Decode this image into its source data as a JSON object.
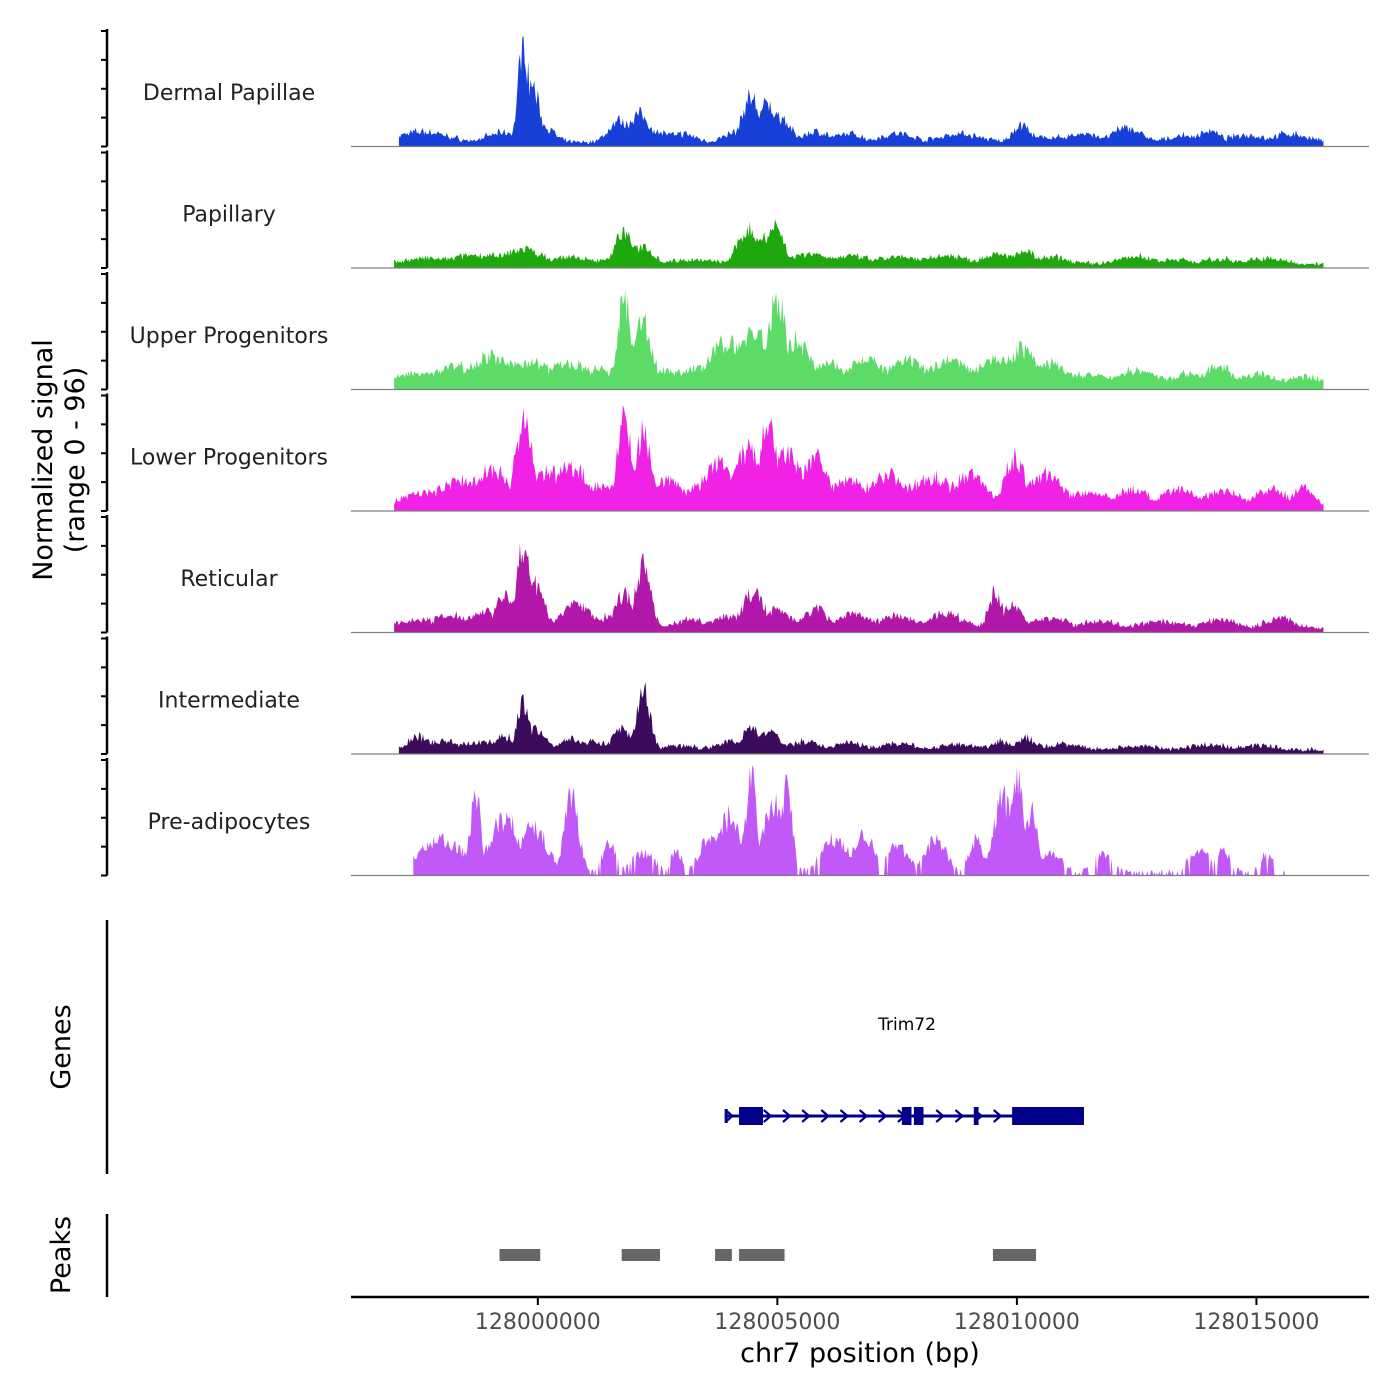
{
  "chart_data": {
    "type": "area",
    "title": "",
    "ylabel_line1": "Normalized signal",
    "ylabel_line2": "(range 0 - 96)",
    "y_range": [
      0,
      96
    ],
    "xlabel": "chr7 position (bp)",
    "x_range": [
      127996100,
      128017350
    ],
    "x_ticks": [
      128000000,
      128005000,
      128010000,
      128015000
    ],
    "x_tick_labels": [
      "128000000",
      "128005000",
      "128010000",
      "128015000"
    ],
    "tracks": [
      {
        "name": "Dermal Papillae",
        "color": "#1740D9",
        "span": [
          127997100,
          128016400
        ],
        "peaks": [
          [
            127997600,
            10,
            700
          ],
          [
            127998000,
            5,
            500
          ],
          [
            127999300,
            9,
            500
          ],
          [
            127999700,
            96,
            150
          ],
          [
            127999850,
            55,
            250
          ],
          [
            128000100,
            16,
            300
          ],
          [
            128001700,
            20,
            300
          ],
          [
            128002100,
            26,
            350
          ],
          [
            128002500,
            10,
            400
          ],
          [
            128003000,
            8,
            400
          ],
          [
            128004200,
            10,
            400
          ],
          [
            128004450,
            42,
            250
          ],
          [
            128004800,
            35,
            300
          ],
          [
            128005050,
            24,
            300
          ],
          [
            128005800,
            10,
            400
          ],
          [
            128006500,
            8,
            400
          ],
          [
            128007500,
            8,
            500
          ],
          [
            128008800,
            8,
            600
          ],
          [
            128010100,
            16,
            250
          ],
          [
            128010700,
            5,
            500
          ],
          [
            128011400,
            8,
            500
          ],
          [
            128012300,
            14,
            400
          ],
          [
            128013500,
            6,
            500
          ],
          [
            128014000,
            11,
            300
          ],
          [
            128014800,
            7,
            500
          ],
          [
            128015700,
            8,
            500
          ]
        ]
      },
      {
        "name": "Papillary",
        "color": "#1FA80E",
        "span": [
          127997000,
          128016400
        ],
        "peaks": [
          [
            127997700,
            5,
            700
          ],
          [
            127998800,
            8,
            900
          ],
          [
            127999700,
            14,
            500
          ],
          [
            128000600,
            6,
            600
          ],
          [
            128001600,
            5,
            500
          ],
          [
            128001800,
            30,
            250
          ],
          [
            128002200,
            16,
            300
          ],
          [
            128003200,
            4,
            600
          ],
          [
            128004400,
            32,
            300
          ],
          [
            128004750,
            28,
            250
          ],
          [
            128004950,
            36,
            250
          ],
          [
            128005700,
            10,
            500
          ],
          [
            128006500,
            7,
            600
          ],
          [
            128007500,
            6,
            600
          ],
          [
            128008500,
            8,
            600
          ],
          [
            128009600,
            10,
            400
          ],
          [
            128010150,
            12,
            300
          ],
          [
            128010700,
            6,
            500
          ],
          [
            128012500,
            7,
            500
          ],
          [
            128013300,
            4,
            500
          ],
          [
            128014300,
            4,
            600
          ],
          [
            128015200,
            5,
            500
          ]
        ]
      },
      {
        "name": "Upper Progenitors",
        "color": "#5CDC66",
        "span": [
          127997000,
          128016400
        ],
        "peaks": [
          [
            127997500,
            12,
            600
          ],
          [
            127998300,
            18,
            700
          ],
          [
            127999000,
            26,
            700
          ],
          [
            127999800,
            22,
            700
          ],
          [
            128000600,
            20,
            700
          ],
          [
            128001300,
            15,
            400
          ],
          [
            128001800,
            82,
            180
          ],
          [
            128002200,
            60,
            250
          ],
          [
            128002700,
            14,
            500
          ],
          [
            128003300,
            16,
            500
          ],
          [
            128004000,
            40,
            600
          ],
          [
            128004500,
            52,
            400
          ],
          [
            128005000,
            82,
            250
          ],
          [
            128005400,
            42,
            400
          ],
          [
            128006000,
            20,
            600
          ],
          [
            128006800,
            24,
            600
          ],
          [
            128007700,
            22,
            600
          ],
          [
            128008600,
            24,
            600
          ],
          [
            128009500,
            26,
            500
          ],
          [
            128010100,
            34,
            400
          ],
          [
            128010700,
            20,
            500
          ],
          [
            128011500,
            10,
            600
          ],
          [
            128012500,
            14,
            600
          ],
          [
            128013500,
            10,
            500
          ],
          [
            128014200,
            18,
            400
          ],
          [
            128015000,
            10,
            600
          ],
          [
            128016000,
            8,
            500
          ]
        ]
      },
      {
        "name": "Lower Progenitors",
        "color": "#EF22E6",
        "span": [
          127997000,
          128016400
        ],
        "peaks": [
          [
            127997600,
            14,
            600
          ],
          [
            127998400,
            24,
            700
          ],
          [
            127999000,
            34,
            600
          ],
          [
            127999700,
            80,
            250
          ],
          [
            128000200,
            34,
            400
          ],
          [
            128000700,
            38,
            500
          ],
          [
            128001300,
            20,
            400
          ],
          [
            128001800,
            84,
            200
          ],
          [
            128002200,
            68,
            250
          ],
          [
            128002700,
            25,
            500
          ],
          [
            128003300,
            18,
            400
          ],
          [
            128003800,
            40,
            500
          ],
          [
            128004400,
            52,
            400
          ],
          [
            128004800,
            70,
            300
          ],
          [
            128005200,
            50,
            400
          ],
          [
            128005800,
            48,
            350
          ],
          [
            128006500,
            24,
            600
          ],
          [
            128007300,
            30,
            600
          ],
          [
            128008200,
            28,
            600
          ],
          [
            128009000,
            30,
            500
          ],
          [
            128009950,
            45,
            300
          ],
          [
            128010600,
            30,
            500
          ],
          [
            128011500,
            14,
            600
          ],
          [
            128012400,
            16,
            500
          ],
          [
            128013400,
            16,
            500
          ],
          [
            128014300,
            16,
            500
          ],
          [
            128015300,
            16,
            500
          ],
          [
            128016000,
            18,
            300
          ]
        ]
      },
      {
        "name": "Reticular",
        "color": "#B117A8",
        "span": [
          127997000,
          128016400
        ],
        "peaks": [
          [
            127997500,
            8,
            600
          ],
          [
            127998200,
            12,
            600
          ],
          [
            127998900,
            16,
            500
          ],
          [
            127999300,
            30,
            300
          ],
          [
            127999700,
            80,
            180
          ],
          [
            127999900,
            42,
            300
          ],
          [
            128000800,
            24,
            400
          ],
          [
            128001500,
            12,
            300
          ],
          [
            128001800,
            32,
            250
          ],
          [
            128002200,
            60,
            220
          ],
          [
            128003200,
            8,
            500
          ],
          [
            128004000,
            12,
            500
          ],
          [
            128004500,
            34,
            300
          ],
          [
            128005000,
            18,
            400
          ],
          [
            128005800,
            18,
            350
          ],
          [
            128006600,
            14,
            500
          ],
          [
            128007500,
            12,
            500
          ],
          [
            128008500,
            14,
            500
          ],
          [
            128009550,
            34,
            200
          ],
          [
            128009900,
            20,
            300
          ],
          [
            128010700,
            10,
            500
          ],
          [
            128011700,
            7,
            500
          ],
          [
            128013000,
            6,
            600
          ],
          [
            128014200,
            8,
            500
          ],
          [
            128015500,
            10,
            400
          ]
        ]
      },
      {
        "name": "Intermediate",
        "color": "#3C0B5C",
        "span": [
          127997100,
          128016400
        ],
        "peaks": [
          [
            127997500,
            12,
            300
          ],
          [
            127998000,
            8,
            500
          ],
          [
            127998800,
            8,
            500
          ],
          [
            127999300,
            12,
            300
          ],
          [
            127999700,
            46,
            180
          ],
          [
            127999950,
            20,
            300
          ],
          [
            128000700,
            10,
            400
          ],
          [
            128001200,
            8,
            300
          ],
          [
            128001750,
            20,
            250
          ],
          [
            128002200,
            56,
            200
          ],
          [
            128003000,
            4,
            500
          ],
          [
            128004000,
            8,
            400
          ],
          [
            128004450,
            22,
            250
          ],
          [
            128004800,
            18,
            300
          ],
          [
            128005600,
            8,
            400
          ],
          [
            128006500,
            6,
            500
          ],
          [
            128007500,
            6,
            500
          ],
          [
            128008800,
            5,
            500
          ],
          [
            128009700,
            8,
            300
          ],
          [
            128010200,
            10,
            300
          ],
          [
            128011000,
            5,
            500
          ],
          [
            128012500,
            4,
            500
          ],
          [
            128014000,
            5,
            500
          ],
          [
            128015000,
            4,
            500
          ]
        ]
      },
      {
        "name": "Pre-adipocytes",
        "color": "#C158F8",
        "span": [
          127997400,
          128015600
        ],
        "peaks": [
          [
            127998000,
            30,
            600
          ],
          [
            127998700,
            72,
            150
          ],
          [
            127999300,
            50,
            400
          ],
          [
            127999900,
            40,
            400
          ],
          [
            128000700,
            70,
            200
          ],
          [
            128001500,
            25,
            200
          ],
          [
            128002200,
            18,
            300
          ],
          [
            128002900,
            20,
            150
          ],
          [
            128003600,
            30,
            300
          ],
          [
            128004000,
            50,
            400
          ],
          [
            128004450,
            88,
            150
          ],
          [
            128004900,
            64,
            300
          ],
          [
            128005200,
            80,
            150
          ],
          [
            128006200,
            30,
            400
          ],
          [
            128006800,
            34,
            300
          ],
          [
            128007500,
            24,
            300
          ],
          [
            128008300,
            30,
            300
          ],
          [
            128009150,
            30,
            200
          ],
          [
            128009700,
            72,
            250
          ],
          [
            128010000,
            90,
            200
          ],
          [
            128010300,
            55,
            200
          ],
          [
            128010750,
            16,
            300
          ],
          [
            128011800,
            14,
            300
          ],
          [
            128013800,
            20,
            300
          ],
          [
            128014300,
            22,
            200
          ],
          [
            128015200,
            16,
            200
          ]
        ]
      }
    ],
    "genes_label": "Genes",
    "gene": {
      "name": "Trim72",
      "color": "#00008B",
      "start": 128003900,
      "end": 128011400,
      "exons": [
        [
          128004200,
          128004700
        ],
        [
          128007600,
          128007800
        ],
        [
          128007850,
          128008050
        ],
        [
          128009100,
          128009200
        ],
        [
          128009900,
          128011400
        ]
      ]
    },
    "peaks_label": "Peaks",
    "peak_regions": [
      [
        127999200,
        128000050
      ],
      [
        128001750,
        128002550
      ],
      [
        128003700,
        128004050
      ],
      [
        128004200,
        128005150
      ],
      [
        128009500,
        128010400
      ]
    ]
  }
}
